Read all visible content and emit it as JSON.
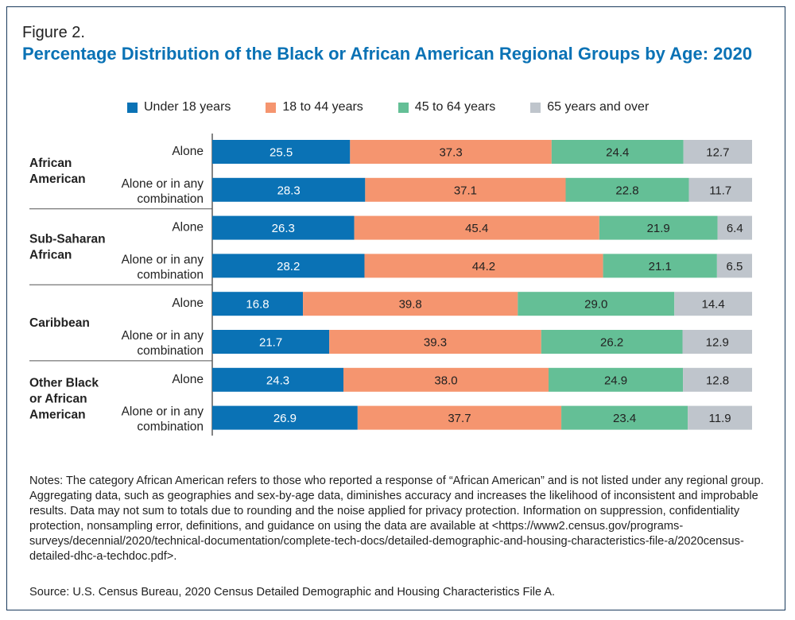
{
  "figure": {
    "label": "Figure 2.",
    "title": "Percentage Distribution of the Black or African American Regional Groups by Age: 2020"
  },
  "chart_data": {
    "type": "bar",
    "orientation": "horizontal",
    "stacked": true,
    "xlim": [
      0,
      100
    ],
    "legend_position": "top",
    "series": [
      {
        "name": "Under 18 years",
        "color": "#0a72b5"
      },
      {
        "name": "18 to 44 years",
        "color": "#f5956f"
      },
      {
        "name": "45 to 64 years",
        "color": "#64bf96"
      },
      {
        "name": "65 years and over",
        "color": "#bfc5cc"
      }
    ],
    "groups": [
      {
        "name": "African American",
        "name_lines": [
          "African",
          "American"
        ],
        "bars": [
          {
            "label_lines": [
              "Alone"
            ],
            "values": [
              25.5,
              37.3,
              24.4,
              12.7
            ],
            "value_labels": [
              "25.5",
              "37.3",
              "24.4",
              "12.7"
            ]
          },
          {
            "label_lines": [
              "Alone or in any",
              "combination"
            ],
            "values": [
              28.3,
              37.1,
              22.8,
              11.7
            ],
            "value_labels": [
              "28.3",
              "37.1",
              "22.8",
              "11.7"
            ]
          }
        ]
      },
      {
        "name": "Sub-Saharan African",
        "name_lines": [
          "Sub-Saharan",
          "African"
        ],
        "bars": [
          {
            "label_lines": [
              "Alone"
            ],
            "values": [
              26.3,
              45.4,
              21.9,
              6.4
            ],
            "value_labels": [
              "26.3",
              "45.4",
              "21.9",
              "6.4"
            ]
          },
          {
            "label_lines": [
              "Alone or in any",
              "combination"
            ],
            "values": [
              28.2,
              44.2,
              21.1,
              6.5
            ],
            "value_labels": [
              "28.2",
              "44.2",
              "21.1",
              "6.5"
            ]
          }
        ]
      },
      {
        "name": "Caribbean",
        "name_lines": [
          "Caribbean"
        ],
        "bars": [
          {
            "label_lines": [
              "Alone"
            ],
            "values": [
              16.8,
              39.8,
              29.0,
              14.4
            ],
            "value_labels": [
              "16.8",
              "39.8",
              "29.0",
              "14.4"
            ]
          },
          {
            "label_lines": [
              "Alone or in any",
              "combination"
            ],
            "values": [
              21.7,
              39.3,
              26.2,
              12.9
            ],
            "value_labels": [
              "21.7",
              "39.3",
              "26.2",
              "12.9"
            ]
          }
        ]
      },
      {
        "name": "Other Black or African American",
        "name_lines": [
          "Other Black",
          "or African",
          "American"
        ],
        "bars": [
          {
            "label_lines": [
              "Alone"
            ],
            "values": [
              24.3,
              38.0,
              24.9,
              12.8
            ],
            "value_labels": [
              "24.3",
              "38.0",
              "24.9",
              "12.8"
            ]
          },
          {
            "label_lines": [
              "Alone or in any",
              "combination"
            ],
            "values": [
              26.9,
              37.7,
              23.4,
              11.9
            ],
            "value_labels": [
              "26.9",
              "37.7",
              "23.4",
              "11.9"
            ]
          }
        ]
      }
    ]
  },
  "notes": "Notes: The category African American refers to those who reported a response of “African American” and is not listed under any regional group. Aggregating data, such as geographies and sex-by-age data, diminishes accuracy and increases the likelihood of inconsistent and improbable results. Data may not sum to totals due to rounding and the noise applied for privacy protection. Information on suppression, confidentiality protection, nonsampling error, definitions, and guidance on using the data are available at <https://www2.census.gov/programs-surveys/decennial/2020/technical-documentation/complete-tech-docs/detailed-demographic-and-housing-characteristics-file-a/2020census-detailed-dhc-a-techdoc.pdf>.",
  "source": "Source: U.S. Census Bureau, 2020 Census Detailed Demographic and Housing Characteristics File A."
}
